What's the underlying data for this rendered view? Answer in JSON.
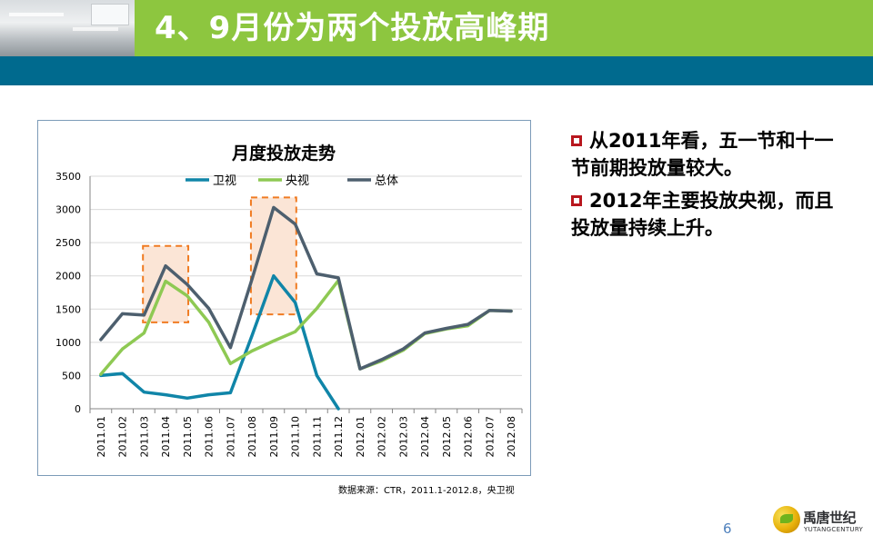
{
  "header": {
    "title": "4、9月份为两个投放高峰期",
    "green": "#8dc63f",
    "blue": "#006a8e"
  },
  "chart_data": {
    "type": "line",
    "title": "月度投放走势",
    "categories": [
      "2011.01",
      "2011.02",
      "2011.03",
      "2011.04",
      "2011.05",
      "2011.06",
      "2011.07",
      "2011.08",
      "2011.09",
      "2011.10",
      "2011.11",
      "2011.12",
      "2012.01",
      "2012.02",
      "2012.03",
      "2012.04",
      "2012.05",
      "2012.06",
      "2012.07",
      "2012.08"
    ],
    "ylim": [
      0,
      3500
    ],
    "yticks": [
      0,
      500,
      1000,
      1500,
      2000,
      2500,
      3000,
      3500
    ],
    "grid": true,
    "legend_position": "top",
    "series": [
      {
        "name": "卫视",
        "color": "#1085a8",
        "values": [
          500,
          530,
          250,
          210,
          160,
          210,
          240,
          1100,
          2000,
          1600,
          500,
          0,
          null,
          null,
          null,
          null,
          null,
          null,
          null,
          null
        ]
      },
      {
        "name": "央视",
        "color": "#8ec953",
        "values": [
          520,
          900,
          1140,
          1920,
          1700,
          1300,
          680,
          870,
          1020,
          1160,
          1510,
          1930,
          600,
          720,
          880,
          1130,
          1200,
          1250,
          1480,
          1470
        ]
      },
      {
        "name": "总体",
        "color": "#4d5f6e",
        "values": [
          1040,
          1430,
          1410,
          2150,
          1870,
          1510,
          920,
          1950,
          3030,
          2780,
          2030,
          1970,
          600,
          740,
          900,
          1140,
          1210,
          1270,
          1480,
          1470
        ]
      }
    ],
    "highlights": [
      {
        "from": "2011.03",
        "to": "2011.05",
        "ymin": 1300,
        "ymax": 2450
      },
      {
        "from": "2011.08",
        "to": "2011.10",
        "ymin": 1420,
        "ymax": 3180
      }
    ],
    "highlight_fill": "#fbe5d6",
    "highlight_stroke": "#f07b22"
  },
  "source_note": "数据来源：CTR，2011.1-2012.8，央卫视",
  "bullets": [
    "从2011年看，五一节和十一节前期投放量较大。",
    "2012年主要投放央视，而且投放量持续上升。"
  ],
  "bullet_color": "#b8171e",
  "page_number": "6",
  "logo": {
    "name": "禹唐世纪",
    "sub": "YUTANGCENTURY"
  }
}
